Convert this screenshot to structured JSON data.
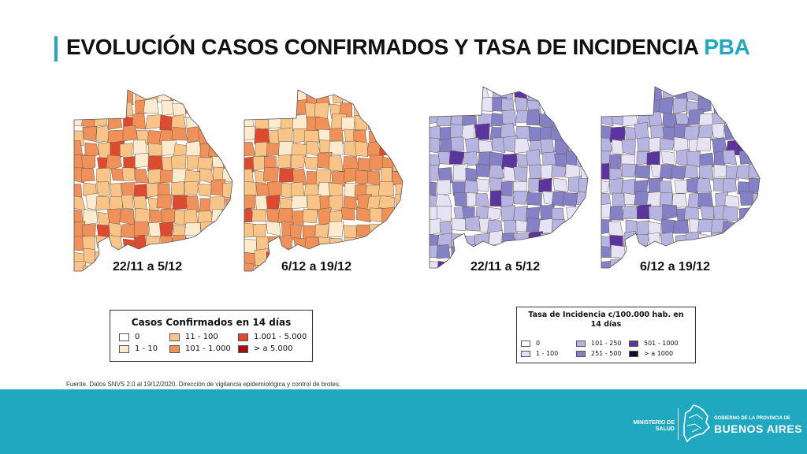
{
  "title": {
    "main": "EVOLUCIÓN CASOS CONFIRMADOS Y TASA DE INCIDENCIA",
    "accent": "PBA"
  },
  "maps": [
    {
      "period": "22/11 a 5/12",
      "scheme": "cases"
    },
    {
      "period": "6/12 a 19/12",
      "scheme": "cases"
    },
    {
      "period": "22/11 a 5/12",
      "scheme": "incidence"
    },
    {
      "period": "6/12 a 19/12",
      "scheme": "incidence"
    }
  ],
  "legend_cases": {
    "title": "Casos Confirmados en 14 días",
    "items": [
      {
        "label": "0",
        "color": "#ffffff"
      },
      {
        "label": "1 - 10",
        "color": "#fdebd0"
      },
      {
        "label": "11 - 100",
        "color": "#f9c487"
      },
      {
        "label": "101 - 1.000",
        "color": "#f1915a"
      },
      {
        "label": "1.001 - 5.000",
        "color": "#de4a30"
      },
      {
        "label": "> a 5.000",
        "color": "#a80d12"
      }
    ]
  },
  "legend_incidence": {
    "title": "Tasa de Incidencia c/100.000 hab. en 14 días",
    "items": [
      {
        "label": "0",
        "color": "#ffffff"
      },
      {
        "label": "1 - 100",
        "color": "#e6e4f4"
      },
      {
        "label": "101 - 250",
        "color": "#b6b4e0"
      },
      {
        "label": "251 - 500",
        "color": "#8481c6"
      },
      {
        "label": "501 - 1000",
        "color": "#5a349f"
      },
      {
        "label": "> a 1000",
        "color": "#1a0830"
      }
    ]
  },
  "source_note": "Fuente. Datos SNVS 2.0 al 19/12/2020. Dirección de vigilancia epidemiológica y control de brotes.",
  "footer": {
    "ministry_line1": "MINISTERIO DE",
    "ministry_line2": "SALUD",
    "gov_small": "GOBIERNO DE LA PROVINCIA DE",
    "gov_big": "BUENOS AIRES"
  }
}
